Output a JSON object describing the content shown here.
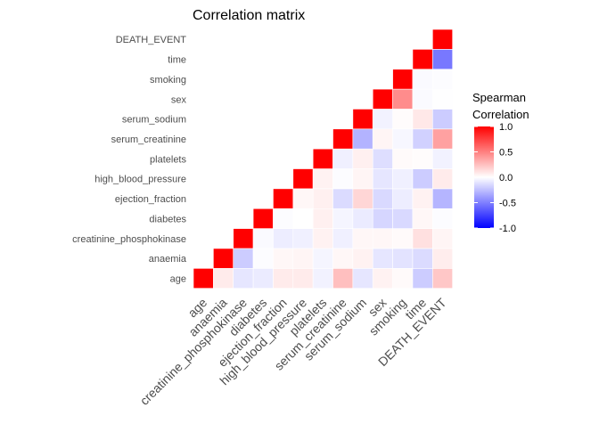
{
  "chart_data": {
    "type": "heatmap",
    "title": "Correlation matrix",
    "xlabel": "",
    "ylabel": "",
    "variables": [
      "age",
      "anaemia",
      "creatinine_phosphokinase",
      "diabetes",
      "ejection_fraction",
      "high_blood_pressure",
      "platelets",
      "serum_creatinine",
      "serum_sodium",
      "sex",
      "smoking",
      "time",
      "DEATH_EVENT"
    ],
    "lower_triangle_rows": [
      [
        1.0
      ],
      [
        0.08,
        1.0
      ],
      [
        -0.1,
        -0.2,
        1.0
      ],
      [
        -0.08,
        -0.01,
        -0.02,
        1.0
      ],
      [
        0.08,
        0.03,
        -0.07,
        -0.01,
        1.0
      ],
      [
        0.08,
        0.04,
        -0.06,
        0.0,
        0.03,
        1.0
      ],
      [
        -0.05,
        -0.04,
        0.05,
        0.06,
        0.06,
        0.05,
        1.0
      ],
      [
        0.25,
        0.03,
        -0.06,
        -0.04,
        -0.14,
        -0.01,
        -0.06,
        1.0
      ],
      [
        -0.1,
        0.05,
        0.03,
        -0.08,
        0.16,
        0.04,
        0.06,
        -0.3,
        1.0
      ],
      [
        0.05,
        -0.1,
        0.03,
        -0.16,
        -0.15,
        -0.1,
        -0.13,
        0.04,
        -0.05,
        1.0
      ],
      [
        0.02,
        -0.11,
        0.02,
        -0.15,
        -0.07,
        -0.06,
        0.02,
        -0.03,
        0.01,
        0.45,
        1.0
      ],
      [
        -0.2,
        -0.14,
        0.12,
        0.03,
        0.05,
        -0.2,
        0.01,
        -0.18,
        0.09,
        -0.02,
        -0.02,
        1.0
      ],
      [
        0.22,
        0.07,
        0.04,
        -0.01,
        -0.29,
        0.08,
        -0.05,
        0.37,
        -0.2,
        -0.004,
        -0.01,
        -0.53,
        1.0
      ]
    ],
    "color_scale": {
      "title_lines": [
        "Spearman",
        "Correlation"
      ],
      "limits": [
        -1,
        1
      ],
      "breaks": [
        "1.0",
        "0.5",
        "0.0",
        "-0.5",
        "-1.0"
      ],
      "low_color": "#0000ff",
      "mid_color": "#ffffff",
      "high_color": "#ff0000"
    },
    "legend_position": "right"
  }
}
